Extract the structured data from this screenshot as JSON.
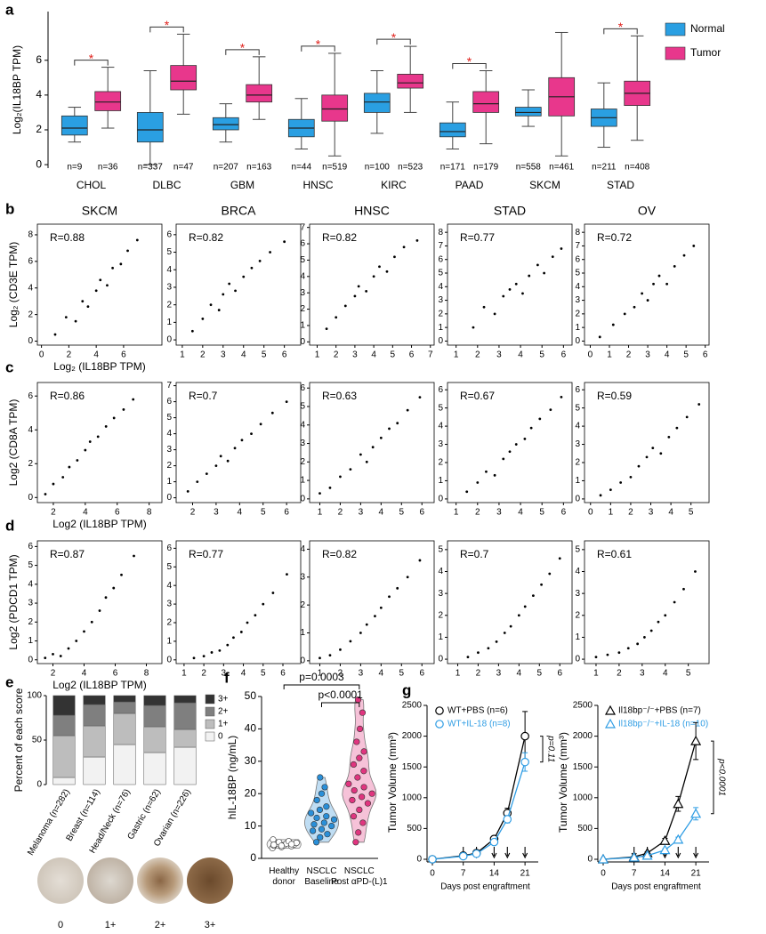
{
  "chart_data": [
    {
      "type": "box",
      "label": "a",
      "ylabel": "Log₂(IL18BP TPM)",
      "categories": [
        "CHOL",
        "DLBC",
        "GBM",
        "HNSC",
        "KIRC",
        "PAAD",
        "SKCM",
        "STAD"
      ],
      "ylim": [
        -0.2,
        8.8
      ],
      "yticks": [
        0,
        2,
        4,
        6
      ],
      "significance": [
        "*",
        "*",
        "*",
        "*",
        "*",
        "*",
        null,
        "*"
      ],
      "series": [
        {
          "name": "Normal",
          "color": "#2a9fe2",
          "median": [
            2.1,
            2.0,
            2.3,
            2.1,
            3.6,
            1.9,
            3.0,
            2.7
          ],
          "q1": [
            1.7,
            1.3,
            2.0,
            1.6,
            3.0,
            1.6,
            2.8,
            2.2
          ],
          "q3": [
            2.8,
            3.0,
            2.7,
            2.6,
            4.1,
            2.4,
            3.3,
            3.2
          ],
          "min": [
            1.3,
            0.0,
            1.3,
            0.9,
            1.8,
            0.9,
            2.2,
            1.0
          ],
          "max": [
            3.3,
            5.4,
            3.5,
            3.8,
            5.4,
            3.6,
            4.3,
            4.7
          ],
          "n_labels": [
            "n=9",
            "n=337",
            "n=207",
            "n=44",
            "n=100",
            "n=171",
            "n=558",
            "n=211"
          ]
        },
        {
          "name": "Tumor",
          "color": "#e8378c",
          "median": [
            3.6,
            4.8,
            4.0,
            3.2,
            4.7,
            3.5,
            3.9,
            4.1
          ],
          "q1": [
            3.1,
            4.3,
            3.6,
            2.5,
            4.4,
            3.0,
            2.8,
            3.4
          ],
          "q3": [
            4.2,
            5.7,
            4.6,
            4.0,
            5.2,
            4.2,
            5.0,
            4.8
          ],
          "min": [
            2.1,
            2.9,
            2.6,
            0.5,
            3.0,
            1.2,
            0.5,
            1.4
          ],
          "max": [
            5.6,
            7.5,
            6.2,
            6.4,
            6.8,
            5.4,
            7.6,
            7.4
          ],
          "n_labels": [
            "n=36",
            "n=47",
            "n=163",
            "n=519",
            "n=523",
            "n=179",
            "n=461",
            "n=408"
          ]
        }
      ]
    },
    {
      "type": "scatter",
      "label": "b",
      "title": "SKCM",
      "annotation": "R=0.88",
      "xlabel": "Log₂ (IL18BP TPM)",
      "ylabel": "Log₂ (CD3E TPM)",
      "xlim": [
        -0.3,
        8.8
      ],
      "ylim": [
        -0.3,
        8.8
      ],
      "xticks": [
        0,
        2,
        4,
        6
      ],
      "yticks": [
        0,
        2,
        4,
        6,
        8
      ],
      "x": [
        1,
        1.8,
        2.5,
        3,
        3.4,
        4,
        4.3,
        4.8,
        5.2,
        5.8,
        6.3,
        7
      ],
      "y": [
        0.5,
        1.8,
        1.5,
        3,
        2.6,
        3.8,
        4.6,
        4.2,
        5.5,
        5.8,
        6.8,
        7.6
      ]
    },
    {
      "type": "scatter",
      "title": "BRCA",
      "annotation": "R=0.82",
      "xlim": [
        0.7,
        6.8
      ],
      "ylim": [
        -0.3,
        6.6
      ],
      "xticks": [
        1,
        2,
        3,
        4,
        5,
        6
      ],
      "yticks": [
        0,
        1,
        2,
        3,
        4,
        5,
        6
      ],
      "x": [
        1.5,
        2,
        2.4,
        2.8,
        3,
        3.3,
        3.6,
        4,
        4.4,
        4.8,
        5.3,
        6
      ],
      "y": [
        0.5,
        1.2,
        2,
        1.7,
        2.6,
        3.2,
        2.8,
        3.6,
        4.1,
        4.5,
        5,
        5.6
      ]
    },
    {
      "type": "scatter",
      "title": "HNSC",
      "annotation": "R=0.82",
      "xlim": [
        0.6,
        7.2
      ],
      "ylim": [
        -0.2,
        7.2
      ],
      "xticks": [
        1,
        2,
        3,
        4,
        5,
        6,
        7
      ],
      "yticks": [
        0,
        1,
        2,
        3,
        4,
        5,
        6,
        7
      ],
      "x": [
        1.5,
        2,
        2.5,
        3,
        3.2,
        3.6,
        4,
        4.3,
        4.7,
        5.1,
        5.6,
        6.3
      ],
      "y": [
        0.8,
        1.5,
        2.2,
        2.8,
        3.4,
        3.1,
        4,
        4.6,
        4.3,
        5.2,
        5.8,
        6.2
      ]
    },
    {
      "type": "scatter",
      "title": "STAD",
      "annotation": "R=0.77",
      "xlim": [
        0.6,
        6.4
      ],
      "ylim": [
        -0.3,
        8.6
      ],
      "xticks": [
        1,
        2,
        3,
        4,
        5,
        6
      ],
      "yticks": [
        0,
        1,
        2,
        3,
        4,
        5,
        6,
        7,
        8
      ],
      "x": [
        1.8,
        2.3,
        2.8,
        3.2,
        3.5,
        3.8,
        4.1,
        4.4,
        4.8,
        5.1,
        5.5,
        5.9
      ],
      "y": [
        1,
        2.5,
        2,
        3.3,
        3.8,
        4.2,
        3.5,
        4.8,
        5.6,
        5,
        6.2,
        6.8
      ]
    },
    {
      "type": "scatter",
      "title": "OV",
      "annotation": "R=0.72",
      "xlim": [
        -0.3,
        6.2
      ],
      "ylim": [
        -0.3,
        8.6
      ],
      "xticks": [
        0,
        1,
        2,
        3,
        4,
        5,
        6
      ],
      "yticks": [
        0,
        1,
        2,
        3,
        4,
        5,
        6,
        7,
        8
      ],
      "x": [
        0.5,
        1.2,
        1.8,
        2.3,
        2.7,
        3,
        3.3,
        3.6,
        4,
        4.4,
        4.9,
        5.4
      ],
      "y": [
        0.3,
        1.2,
        2,
        2.5,
        3.5,
        3,
        4.2,
        4.8,
        4.2,
        5.5,
        6.3,
        7
      ]
    },
    {
      "type": "scatter",
      "label": "c",
      "annotation": "R=0.86",
      "xlabel": "Log2 (IL18BP TPM)",
      "ylabel": "Log2 (CD8A TPM)",
      "xlim": [
        1,
        8.8
      ],
      "ylim": [
        -0.3,
        6.8
      ],
      "xticks": [
        2,
        4,
        6,
        8
      ],
      "yticks": [
        0,
        2,
        4,
        6
      ],
      "x": [
        1.5,
        2,
        2.6,
        3,
        3.5,
        4,
        4.3,
        4.8,
        5.3,
        5.8,
        6.4,
        7
      ],
      "y": [
        0.2,
        0.8,
        1.2,
        1.8,
        2.2,
        2.8,
        3.3,
        3.6,
        4.2,
        4.7,
        5.2,
        5.8
      ]
    },
    {
      "type": "scatter",
      "annotation": "R=0.7",
      "xlim": [
        1.3,
        6.6
      ],
      "ylim": [
        -0.3,
        7.2
      ],
      "xticks": [
        2,
        3,
        4,
        5,
        6
      ],
      "yticks": [
        0,
        1,
        2,
        3,
        4,
        5,
        6,
        7
      ],
      "x": [
        1.8,
        2.2,
        2.6,
        3,
        3.2,
        3.5,
        3.8,
        4.1,
        4.5,
        4.9,
        5.4,
        6
      ],
      "y": [
        0.4,
        1,
        1.5,
        2,
        2.6,
        2.3,
        3.1,
        3.6,
        4,
        4.6,
        5.3,
        6
      ]
    },
    {
      "type": "scatter",
      "annotation": "R=0.63",
      "xlim": [
        0.5,
        6.6
      ],
      "ylim": [
        -0.2,
        6.3
      ],
      "xticks": [
        1,
        2,
        3,
        4,
        5,
        6
      ],
      "yticks": [
        0,
        1,
        2,
        3,
        4,
        5,
        6
      ],
      "x": [
        1,
        1.5,
        2,
        2.5,
        3,
        3.3,
        3.6,
        4,
        4.4,
        4.8,
        5.3,
        5.9
      ],
      "y": [
        0.3,
        0.6,
        1.2,
        1.6,
        2.4,
        2,
        2.8,
        3.3,
        3.8,
        4.1,
        4.8,
        5.5
      ]
    },
    {
      "type": "scatter",
      "annotation": "R=0.67",
      "xlim": [
        0.6,
        6.4
      ],
      "ylim": [
        -0.2,
        6.4
      ],
      "xticks": [
        1,
        2,
        3,
        4,
        5,
        6
      ],
      "yticks": [
        0,
        1,
        2,
        3,
        4,
        5,
        6
      ],
      "x": [
        1.5,
        2,
        2.4,
        2.8,
        3.2,
        3.5,
        3.8,
        4.2,
        4.5,
        4.9,
        5.4,
        5.9
      ],
      "y": [
        0.4,
        0.9,
        1.5,
        1.3,
        2.2,
        2.6,
        3,
        3.3,
        3.9,
        4.4,
        4.9,
        5.6
      ]
    },
    {
      "type": "scatter",
      "annotation": "R=0.59",
      "xlim": [
        -0.3,
        5.9
      ],
      "ylim": [
        -0.2,
        6.4
      ],
      "xticks": [
        0,
        1,
        2,
        3,
        4,
        5
      ],
      "yticks": [
        0,
        1,
        2,
        3,
        4,
        5,
        6
      ],
      "x": [
        0.5,
        1,
        1.5,
        2,
        2.4,
        2.8,
        3.1,
        3.5,
        3.9,
        4.3,
        4.8,
        5.4
      ],
      "y": [
        0.2,
        0.5,
        0.9,
        1.2,
        1.8,
        2.3,
        2.8,
        2.5,
        3.4,
        3.9,
        4.5,
        5.2
      ]
    },
    {
      "type": "scatter",
      "label": "d",
      "annotation": "R=0.87",
      "xlabel": "Log2 (IL18BP TPM)",
      "ylabel": "Log2 (PDCD1 TPM)",
      "xlim": [
        1,
        9
      ],
      "ylim": [
        -0.2,
        6.3
      ],
      "xticks": [
        2,
        4,
        6,
        8
      ],
      "yticks": [
        0,
        1,
        2,
        3,
        4,
        5,
        6
      ],
      "x": [
        1.5,
        2,
        2.5,
        3,
        3.5,
        4,
        4.5,
        5,
        5.4,
        5.9,
        6.4,
        7.2
      ],
      "y": [
        0.1,
        0.3,
        0.2,
        0.6,
        1,
        1.5,
        2,
        2.6,
        3.3,
        3.8,
        4.5,
        5.5
      ]
    },
    {
      "type": "scatter",
      "annotation": "R=0.77",
      "xlim": [
        0.6,
        6.9
      ],
      "ylim": [
        -0.2,
        6.4
      ],
      "xticks": [
        1,
        2,
        3,
        4,
        5,
        6
      ],
      "yticks": [
        0,
        1,
        2,
        3,
        4,
        5,
        6
      ],
      "x": [
        1.5,
        2,
        2.4,
        2.8,
        3.2,
        3.5,
        3.9,
        4.2,
        4.6,
        5,
        5.5,
        6.2
      ],
      "y": [
        0.1,
        0.2,
        0.4,
        0.5,
        0.8,
        1.2,
        1.5,
        2,
        2.4,
        3,
        3.6,
        4.6
      ]
    },
    {
      "type": "scatter",
      "annotation": "R=0.82",
      "xlim": [
        0.5,
        6.6
      ],
      "ylim": [
        -0.1,
        4.3
      ],
      "xticks": [
        1,
        2,
        3,
        4,
        5,
        6
      ],
      "yticks": [
        0,
        1,
        2,
        3,
        4
      ],
      "x": [
        1,
        1.5,
        2,
        2.5,
        3,
        3.3,
        3.7,
        4,
        4.4,
        4.8,
        5.3,
        5.9
      ],
      "y": [
        0.1,
        0.2,
        0.4,
        0.7,
        1,
        1.3,
        1.6,
        1.9,
        2.3,
        2.6,
        3,
        3.6
      ]
    },
    {
      "type": "scatter",
      "annotation": "R=0.7",
      "xlim": [
        0.5,
        6.6
      ],
      "ylim": [
        -0.2,
        5.4
      ],
      "xticks": [
        1,
        2,
        3,
        4,
        5,
        6
      ],
      "yticks": [
        0,
        1,
        2,
        3,
        4,
        5
      ],
      "x": [
        1.5,
        2,
        2.5,
        2.9,
        3.3,
        3.6,
        4,
        4.3,
        4.7,
        5.1,
        5.5,
        6
      ],
      "y": [
        0.1,
        0.3,
        0.5,
        0.8,
        1.2,
        1.5,
        2,
        2.4,
        2.9,
        3.4,
        3.9,
        4.6
      ]
    },
    {
      "type": "scatter",
      "annotation": "R=0.61",
      "xlim": [
        0.5,
        5.9
      ],
      "ylim": [
        -0.2,
        5.4
      ],
      "xticks": [
        1,
        2,
        3,
        4,
        5
      ],
      "yticks": [
        0,
        1,
        2,
        3,
        4,
        5
      ],
      "x": [
        1,
        1.5,
        2,
        2.4,
        2.8,
        3.1,
        3.4,
        3.7,
        4,
        4.4,
        4.8,
        5.3
      ],
      "y": [
        0.1,
        0.2,
        0.3,
        0.5,
        0.7,
        1,
        1.3,
        1.7,
        2,
        2.6,
        3.2,
        4
      ]
    },
    {
      "type": "stacked_bar",
      "label": "e",
      "ylabel": "Percent of each score",
      "categories": [
        "Melanoma (n=282)",
        "Breast (n=114)",
        "Head/Neck (n=76)",
        "Gastric (n=62)",
        "Ovarian (n=226)"
      ],
      "ylim": [
        0,
        100
      ],
      "yticks": [
        0,
        50,
        100
      ],
      "series": [
        {
          "name": "0",
          "color": "#f2f2f2",
          "values": [
            8,
            31,
            45,
            36,
            42
          ]
        },
        {
          "name": "1+",
          "color": "#bdbdbd",
          "values": [
            47,
            35,
            35,
            29,
            20
          ]
        },
        {
          "name": "2+",
          "color": "#7f7f7f",
          "values": [
            23,
            24,
            13,
            24,
            30
          ]
        },
        {
          "name": "3+",
          "color": "#333333",
          "values": [
            22,
            10,
            7,
            11,
            8
          ]
        }
      ]
    },
    {
      "type": "violin",
      "label": "f",
      "ylabel": "hIL-18BP (ng/mL)",
      "categories": [
        "Healthy donor",
        "NSCLC Baseline",
        "NSCLC Post αPD-(L)1"
      ],
      "ylim": [
        0,
        50
      ],
      "yticks": [
        0,
        10,
        20,
        30,
        40,
        50
      ],
      "annotations": [
        "p=0.0003",
        "p<0.0001"
      ],
      "series": [
        {
          "color": "#ffffff",
          "values": [
            3.2,
            3.5,
            3.8,
            4,
            4.1,
            4.3,
            4.5,
            4.6,
            4.8,
            5,
            5.3,
            5.8,
            3.9,
            4.4,
            4.2
          ]
        },
        {
          "color": "#2a8fd8",
          "values": [
            5,
            6.5,
            7.5,
            8.5,
            9,
            10,
            10.5,
            11,
            12,
            12.5,
            13,
            14,
            15,
            16,
            18,
            20,
            22,
            25
          ]
        },
        {
          "color": "#e0357f",
          "values": [
            5,
            8,
            11,
            13,
            15,
            17,
            18,
            19,
            20,
            21,
            22,
            23,
            25,
            27,
            29,
            31,
            33,
            36,
            40,
            45,
            49
          ]
        }
      ]
    },
    {
      "type": "line",
      "label": "g",
      "ylabel": "Tumor Volume (mm³)",
      "xlabel": "Days post engraftment",
      "annotation": "p=0.11",
      "marker": "circle",
      "x": [
        0,
        7,
        10,
        14,
        17,
        21
      ],
      "treatment_days": [
        7,
        10,
        14,
        17,
        21
      ],
      "xlim": [
        0,
        24
      ],
      "ylim": [
        0,
        2500
      ],
      "xticks": [
        0,
        7,
        14,
        21
      ],
      "yticks": [
        0,
        500,
        1000,
        1500,
        2000,
        2500
      ],
      "series": [
        {
          "name": "WT+PBS (n=6)",
          "color": "#000000",
          "values": [
            0,
            60,
            100,
            330,
            750,
            2000
          ],
          "errors": [
            0,
            10,
            15,
            40,
            80,
            400
          ]
        },
        {
          "name": "WT+IL-18 (n=8)",
          "color": "#2f9de4",
          "values": [
            0,
            50,
            90,
            280,
            650,
            1580
          ],
          "errors": [
            0,
            10,
            15,
            30,
            60,
            150
          ]
        }
      ]
    },
    {
      "type": "line",
      "ylabel": "Tumor Volume (mm³)",
      "xlabel": "Days post engraftment",
      "annotation": "p<0.0001",
      "marker": "triangle",
      "x": [
        0,
        7,
        10,
        14,
        17,
        21
      ],
      "treatment_days": [
        7,
        10,
        14,
        17,
        21
      ],
      "xlim": [
        0,
        24
      ],
      "ylim": [
        0,
        2500
      ],
      "xticks": [
        0,
        7,
        14,
        21
      ],
      "yticks": [
        0,
        500,
        1000,
        1500,
        2000,
        2500
      ],
      "series": [
        {
          "name": "Il18bp⁻/⁻+PBS (n=7)",
          "color": "#000000",
          "values": [
            0,
            40,
            100,
            300,
            900,
            1920
          ],
          "errors": [
            0,
            10,
            20,
            40,
            120,
            300
          ]
        },
        {
          "name": "Il18bp⁻/⁻+IL-18 (n=10)",
          "color": "#2f9de4",
          "values": [
            0,
            30,
            60,
            150,
            320,
            740
          ],
          "errors": [
            0,
            8,
            15,
            20,
            40,
            100
          ]
        }
      ]
    }
  ]
}
